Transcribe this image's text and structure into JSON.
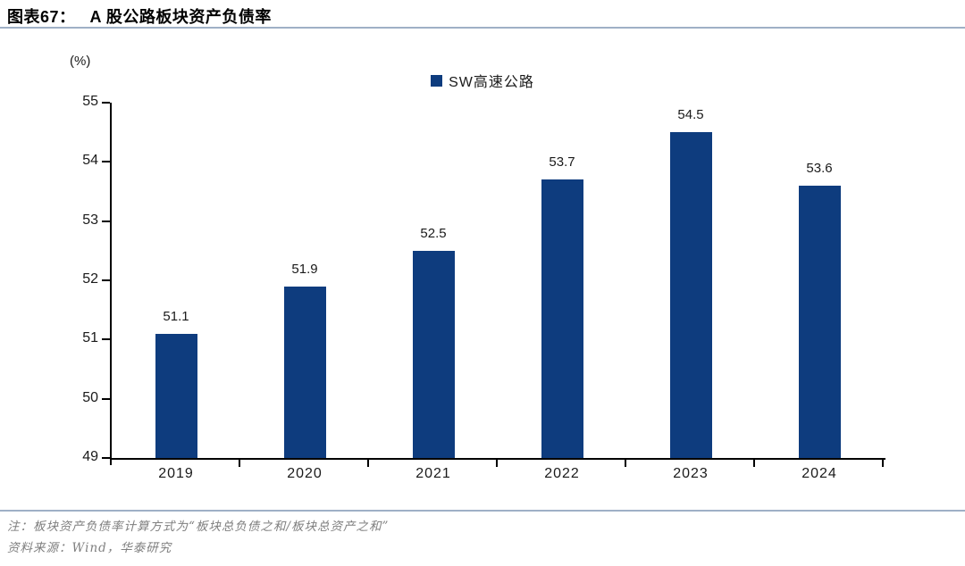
{
  "header": {
    "figure_label": "图表67：",
    "title": "A 股公路板块资产负债率"
  },
  "chart_data": {
    "type": "bar",
    "title": "A 股公路板块资产负债率",
    "unit_label": "(%)",
    "categories": [
      "2019",
      "2020",
      "2021",
      "2022",
      "2023",
      "2024"
    ],
    "series": [
      {
        "name": "SW高速公路",
        "values": [
          51.1,
          51.9,
          52.5,
          53.7,
          54.5,
          53.6
        ],
        "data_labels": [
          "51.1",
          "51.9",
          "52.5",
          "53.7",
          "54.5",
          "53.6"
        ]
      }
    ],
    "ylim": [
      49,
      55
    ],
    "yticks": [
      49,
      50,
      51,
      52,
      53,
      54,
      55
    ],
    "grid": false,
    "legend_position": "top-center"
  },
  "footer": {
    "note": "注：板块资产负债率计算方式为“板块总负债之和/板块总资产之和”",
    "source": "资料来源：Wind，华泰研究"
  },
  "colors": {
    "bar": "#0e3c7e",
    "separator": "#9fb0c6",
    "note_text": "#7f7f7f",
    "axis": "#000000"
  }
}
